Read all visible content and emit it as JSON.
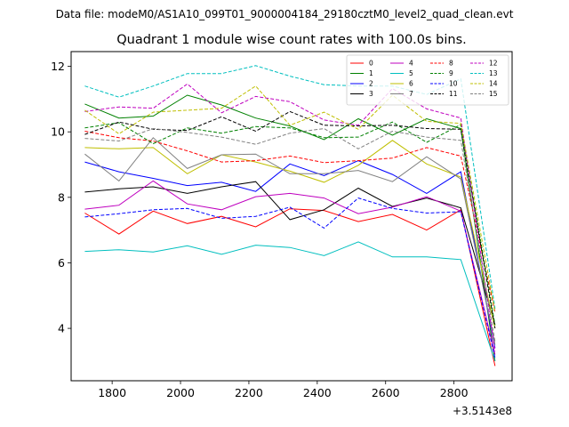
{
  "chart_data": {
    "type": "line",
    "suptitle": "Data file: modeM0/AS1A10_099T01_9000004184_29180cztM0_level2_quad_clean.evt",
    "title": "Quadrant 1 module wise count rates with 100.0s bins.",
    "xlabel": "",
    "ylabel": "",
    "x_offset_label": "+3.5143e8",
    "xlim": [
      1680,
      2970
    ],
    "ylim": [
      2.4,
      12.45
    ],
    "x_ticks": [
      1800,
      2000,
      2200,
      2400,
      2600,
      2800
    ],
    "y_ticks": [
      4,
      6,
      8,
      10,
      12
    ],
    "x": [
      1720,
      1820,
      1920,
      2020,
      2120,
      2220,
      2320,
      2420,
      2520,
      2620,
      2720,
      2820,
      2920
    ],
    "legend": {
      "position": "top-right",
      "columns": 4
    },
    "series": [
      {
        "name": "0",
        "color": "#ff0000",
        "dash": false,
        "values": [
          7.52,
          6.88,
          7.58,
          7.2,
          7.42,
          7.1,
          7.65,
          7.6,
          7.26,
          7.48,
          7.0,
          7.62,
          2.85
        ]
      },
      {
        "name": "1",
        "color": "#008000",
        "dash": false,
        "values": [
          10.85,
          10.42,
          10.48,
          11.12,
          10.82,
          10.42,
          10.18,
          9.76,
          10.4,
          9.9,
          10.4,
          10.1,
          3.0
        ]
      },
      {
        "name": "2",
        "color": "#0000ff",
        "dash": false,
        "values": [
          9.08,
          8.78,
          8.58,
          8.36,
          8.46,
          8.18,
          9.02,
          8.66,
          9.12,
          8.7,
          8.12,
          8.78,
          3.4
        ]
      },
      {
        "name": "3",
        "color": "#000000",
        "dash": false,
        "values": [
          8.16,
          8.26,
          8.32,
          8.12,
          8.32,
          8.48,
          7.32,
          7.62,
          8.28,
          7.72,
          7.98,
          7.68,
          4.1
        ]
      },
      {
        "name": "4",
        "color": "#bf00bf",
        "dash": false,
        "values": [
          7.64,
          7.76,
          8.5,
          7.8,
          7.62,
          8.02,
          8.12,
          7.98,
          7.5,
          7.7,
          8.02,
          7.58,
          3.2
        ]
      },
      {
        "name": "5",
        "color": "#00bfbf",
        "dash": false,
        "values": [
          6.35,
          6.4,
          6.33,
          6.52,
          6.26,
          6.54,
          6.47,
          6.22,
          6.64,
          6.18,
          6.18,
          6.1,
          3.0
        ]
      },
      {
        "name": "6",
        "color": "#bfbf00",
        "dash": false,
        "values": [
          9.52,
          9.48,
          9.52,
          8.72,
          9.3,
          9.08,
          8.8,
          8.46,
          8.98,
          9.74,
          9.02,
          8.62,
          4.0
        ]
      },
      {
        "name": "7",
        "color": "#808080",
        "dash": false,
        "values": [
          9.32,
          8.5,
          9.82,
          8.88,
          9.3,
          9.32,
          8.72,
          8.72,
          8.82,
          8.48,
          9.24,
          8.56,
          3.5
        ]
      },
      {
        "name": "8",
        "color": "#ff0000",
        "dash": true,
        "values": [
          10.02,
          9.82,
          9.72,
          9.42,
          9.08,
          9.12,
          9.26,
          9.06,
          9.12,
          9.2,
          9.52,
          9.26,
          4.5
        ]
      },
      {
        "name": "9",
        "color": "#008000",
        "dash": true,
        "values": [
          10.12,
          10.28,
          9.64,
          10.12,
          9.96,
          10.16,
          10.12,
          9.82,
          9.84,
          10.3,
          9.68,
          10.22,
          4.1
        ]
      },
      {
        "name": "10",
        "color": "#0000ff",
        "dash": true,
        "values": [
          7.4,
          7.5,
          7.62,
          7.66,
          7.36,
          7.42,
          7.7,
          7.06,
          7.98,
          7.66,
          7.52,
          7.56,
          3.1
        ]
      },
      {
        "name": "11",
        "color": "#000000",
        "dash": true,
        "values": [
          9.92,
          10.3,
          10.08,
          10.04,
          10.46,
          10.02,
          10.62,
          10.2,
          10.18,
          10.2,
          10.1,
          10.08,
          4.0
        ]
      },
      {
        "name": "12",
        "color": "#bf00bf",
        "dash": true,
        "values": [
          10.62,
          10.76,
          10.72,
          11.46,
          10.58,
          11.08,
          10.92,
          10.36,
          10.2,
          11.32,
          10.7,
          10.42,
          3.3
        ]
      },
      {
        "name": "13",
        "color": "#00bfbf",
        "dash": true,
        "values": [
          11.4,
          11.06,
          11.4,
          11.78,
          11.78,
          12.02,
          11.7,
          11.44,
          11.4,
          11.4,
          11.14,
          11.62,
          4.6
        ]
      },
      {
        "name": "14",
        "color": "#bfbf00",
        "dash": true,
        "values": [
          10.66,
          9.94,
          10.6,
          10.66,
          10.72,
          11.4,
          10.2,
          10.6,
          10.08,
          11.12,
          10.32,
          10.26,
          4.5
        ]
      },
      {
        "name": "15",
        "color": "#808080",
        "dash": true,
        "values": [
          9.8,
          9.72,
          10.1,
          9.98,
          9.84,
          9.62,
          9.96,
          10.1,
          9.48,
          10.02,
          9.84,
          9.74,
          3.6
        ]
      }
    ]
  }
}
